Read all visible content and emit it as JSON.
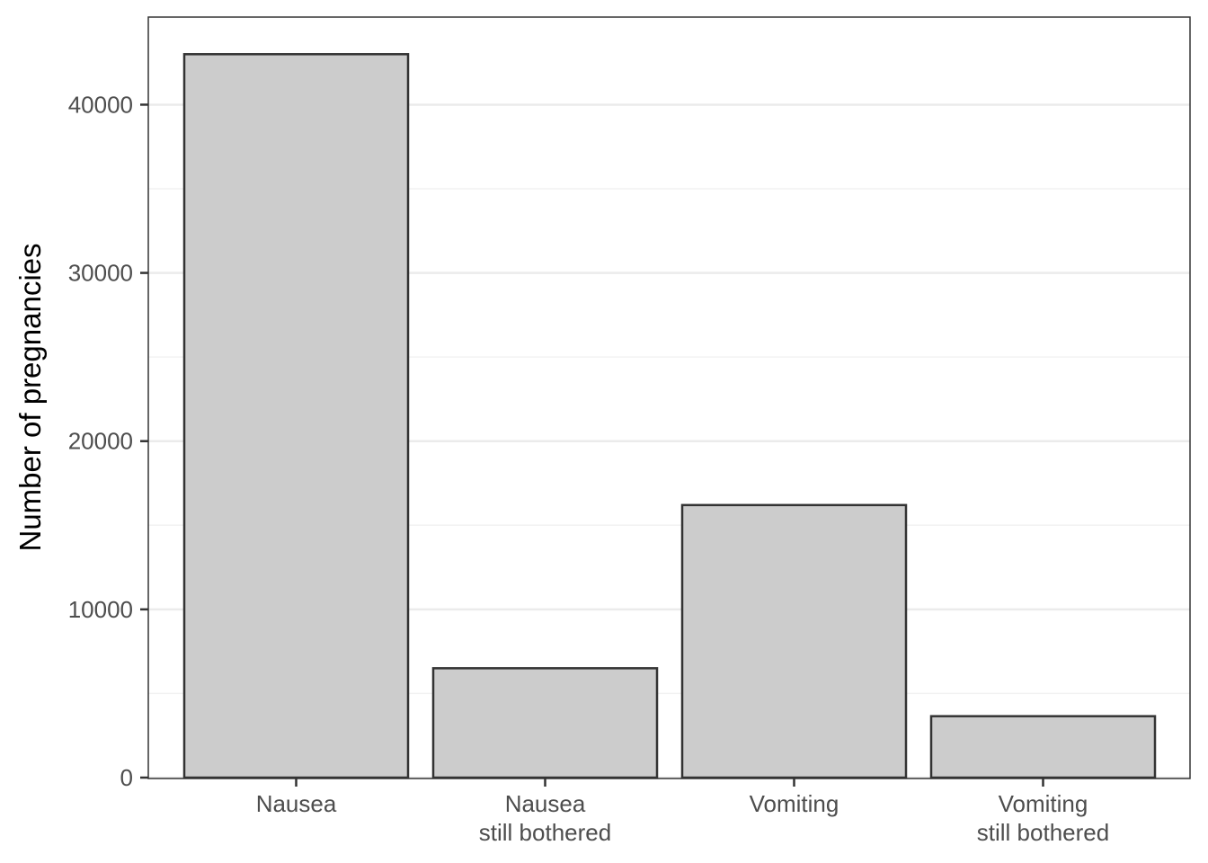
{
  "chart_data": {
    "type": "bar",
    "categories": [
      [
        "Nausea"
      ],
      [
        "Nausea",
        "still bothered"
      ],
      [
        "Vomiting"
      ],
      [
        "Vomiting",
        "still bothered"
      ]
    ],
    "values": [
      43000,
      6500,
      16200,
      3650
    ],
    "ylabel": "Number of pregnancies",
    "xlabel": "",
    "ylim": [
      0,
      45000
    ],
    "y_ticks": [
      0,
      10000,
      20000,
      30000,
      40000
    ],
    "y_tick_labels": [
      "0",
      "10000",
      "20000",
      "30000",
      "40000"
    ],
    "grid": true,
    "colors": {
      "bar_fill": "#cccccc",
      "bar_stroke": "#333333",
      "grid_major": "#ebebeb",
      "grid_minor": "#f2f2f2",
      "panel_border": "#333333"
    }
  }
}
